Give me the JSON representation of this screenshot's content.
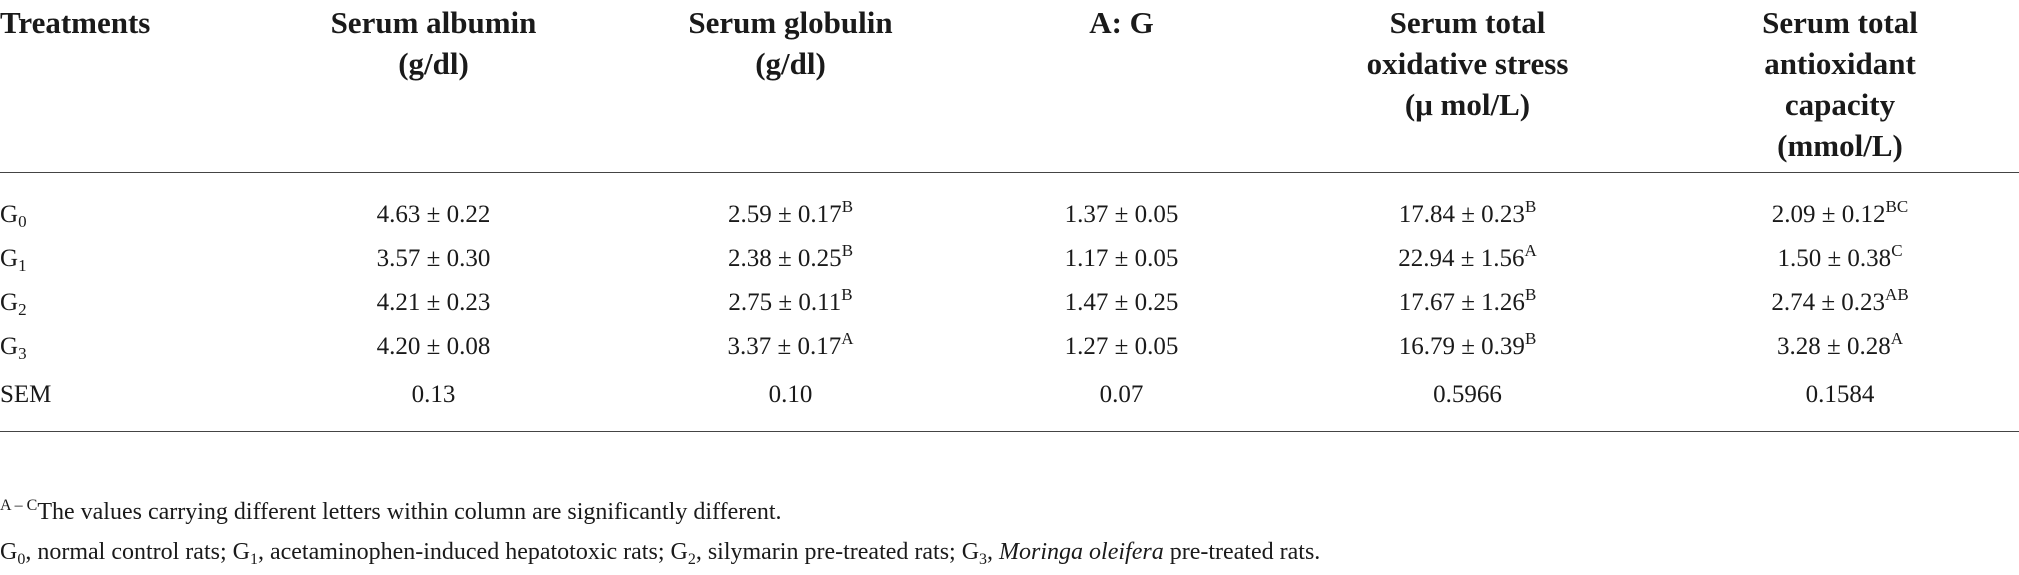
{
  "headers": [
    [
      "Treatments"
    ],
    [
      "Serum albumin",
      "(g/dl)"
    ],
    [
      "Serum globulin",
      "(g/dl)"
    ],
    [
      "A: G"
    ],
    [
      "Serum total",
      "oxidative stress",
      "(μ mol/L)"
    ],
    [
      "Serum total",
      "antioxidant",
      "capacity",
      "(mmol/L)"
    ]
  ],
  "rows": [
    {
      "label": "G",
      "sub": "0",
      "cells": [
        {
          "v": "4.63 ± 0.22",
          "sup": ""
        },
        {
          "v": "2.59 ± 0.17",
          "sup": "B"
        },
        {
          "v": "1.37 ± 0.05",
          "sup": ""
        },
        {
          "v": "17.84 ± 0.23",
          "sup": "B"
        },
        {
          "v": "2.09 ± 0.12",
          "sup": "BC"
        }
      ]
    },
    {
      "label": "G",
      "sub": "1",
      "cells": [
        {
          "v": "3.57 ± 0.30",
          "sup": ""
        },
        {
          "v": "2.38 ± 0.25",
          "sup": "B"
        },
        {
          "v": "1.17 ± 0.05",
          "sup": ""
        },
        {
          "v": "22.94 ± 1.56",
          "sup": "A"
        },
        {
          "v": "1.50 ± 0.38",
          "sup": "C"
        }
      ]
    },
    {
      "label": "G",
      "sub": "2",
      "cells": [
        {
          "v": "4.21 ± 0.23",
          "sup": ""
        },
        {
          "v": "2.75 ± 0.11",
          "sup": "B"
        },
        {
          "v": "1.47 ± 0.25",
          "sup": ""
        },
        {
          "v": "17.67 ± 1.26",
          "sup": "B"
        },
        {
          "v": "2.74 ± 0.23",
          "sup": "AB"
        }
      ]
    },
    {
      "label": "G",
      "sub": "3",
      "cells": [
        {
          "v": "4.20 ± 0.08",
          "sup": ""
        },
        {
          "v": "3.37 ± 0.17",
          "sup": "A"
        },
        {
          "v": "1.27 ± 0.05",
          "sup": ""
        },
        {
          "v": "16.79 ± 0.39",
          "sup": "B"
        },
        {
          "v": "3.28 ± 0.28",
          "sup": "A"
        }
      ]
    },
    {
      "label": "SEM",
      "sub": "",
      "cells": [
        {
          "v": "0.13",
          "sup": ""
        },
        {
          "v": "0.10",
          "sup": ""
        },
        {
          "v": "0.07",
          "sup": ""
        },
        {
          "v": "0.5966",
          "sup": ""
        },
        {
          "v": "0.1584",
          "sup": ""
        }
      ]
    }
  ],
  "footnotes": {
    "note1": {
      "sup": "A – C",
      "text": "The values carrying different letters within column are significantly different."
    },
    "note2": [
      {
        "t": "G"
      },
      {
        "sub": "0"
      },
      {
        "t": ", normal control rats; G"
      },
      {
        "sub": "1"
      },
      {
        "t": ", acetaminophen-induced hepatotoxic rats; G"
      },
      {
        "sub": "2"
      },
      {
        "t": ", silymarin pre-treated rats; G"
      },
      {
        "sub": "3"
      },
      {
        "t": ", "
      },
      {
        "i": "Moringa oleifera"
      },
      {
        "t": " pre-treated rats."
      }
    ]
  }
}
